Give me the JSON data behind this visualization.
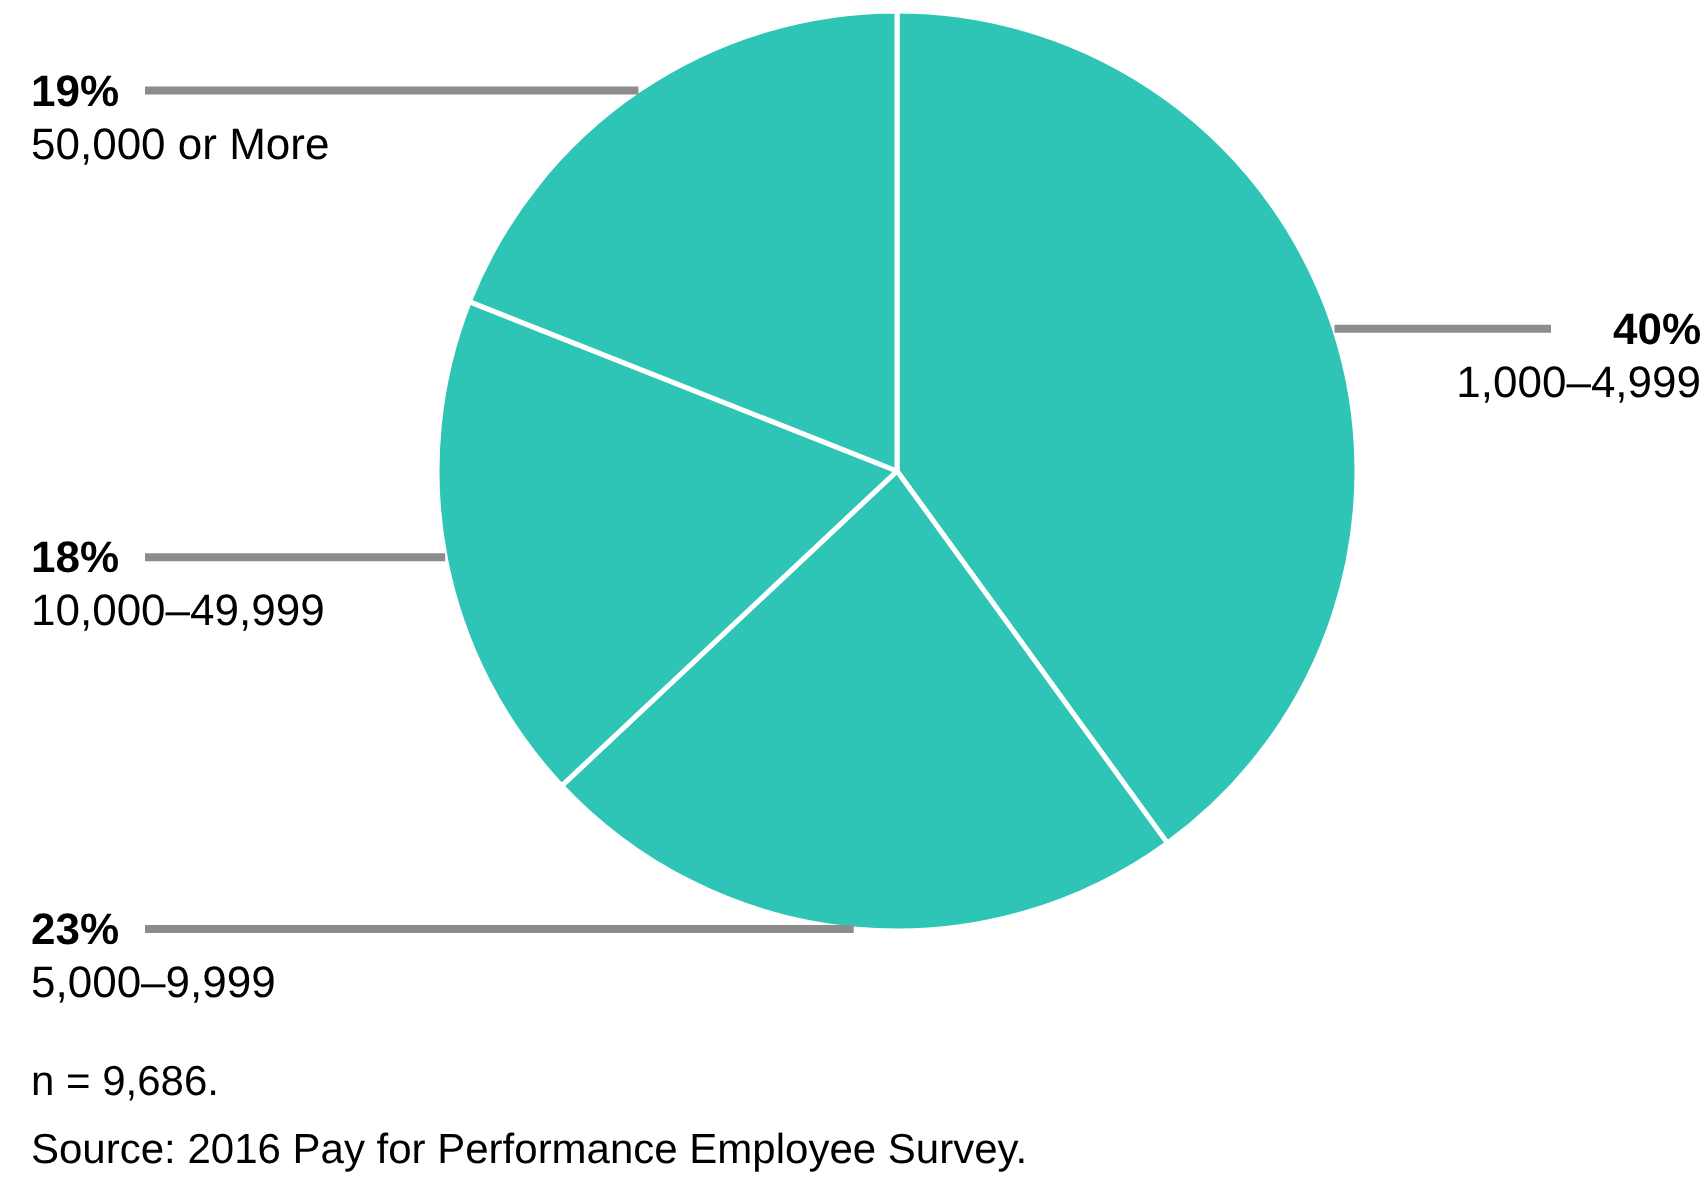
{
  "chart_data": {
    "type": "pie",
    "categories": [
      "1,000–4,999",
      "5,000–9,999",
      "10,000–49,999",
      "50,000 or More"
    ],
    "values": [
      40,
      23,
      18,
      19
    ],
    "colors": [
      "#2ec4b6",
      "#2ec4b6",
      "#2ec4b6",
      "#2ec4b6"
    ],
    "value_labels": [
      "40%",
      "23%",
      "18%",
      "19%"
    ],
    "annotations": [
      "n = 9,686.",
      "Source: 2016 Pay for Performance Employee Survey."
    ]
  }
}
